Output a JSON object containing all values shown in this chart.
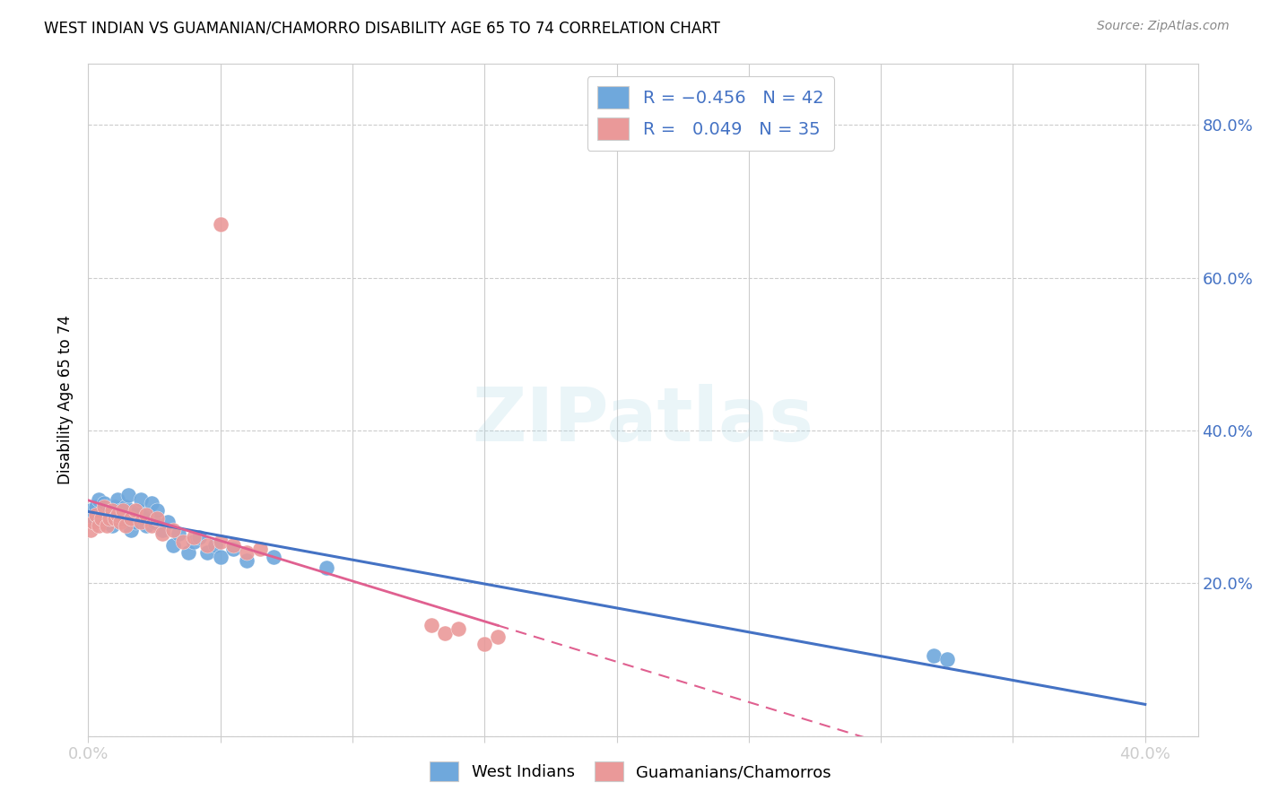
{
  "title": "WEST INDIAN VS GUAMANIAN/CHAMORRO DISABILITY AGE 65 TO 74 CORRELATION CHART",
  "source": "Source: ZipAtlas.com",
  "ylabel": "Disability Age 65 to 74",
  "blue_color": "#6fa8dc",
  "pink_color": "#ea9999",
  "blue_line_color": "#4472c4",
  "pink_line_color": "#e06090",
  "xlim": [
    0.0,
    0.42
  ],
  "ylim": [
    0.0,
    0.88
  ],
  "watermark_text": "ZIPatlas",
  "legend_r1": "R = -0.456",
  "legend_n1": "N = 42",
  "legend_r2": "R =  0.049",
  "legend_n2": "N = 35",
  "west_indians_x": [
    0.001,
    0.002,
    0.003,
    0.004,
    0.005,
    0.006,
    0.007,
    0.008,
    0.009,
    0.01,
    0.011,
    0.012,
    0.013,
    0.014,
    0.015,
    0.016,
    0.017,
    0.018,
    0.019,
    0.02,
    0.021,
    0.022,
    0.023,
    0.024,
    0.025,
    0.026,
    0.028,
    0.03,
    0.032,
    0.034,
    0.038,
    0.04,
    0.042,
    0.045,
    0.048,
    0.05,
    0.055,
    0.06,
    0.07,
    0.09,
    0.32,
    0.325
  ],
  "west_indians_y": [
    0.295,
    0.285,
    0.3,
    0.31,
    0.29,
    0.305,
    0.28,
    0.295,
    0.275,
    0.3,
    0.31,
    0.295,
    0.285,
    0.3,
    0.315,
    0.27,
    0.29,
    0.28,
    0.295,
    0.31,
    0.285,
    0.275,
    0.29,
    0.305,
    0.28,
    0.295,
    0.27,
    0.28,
    0.25,
    0.265,
    0.24,
    0.255,
    0.26,
    0.24,
    0.25,
    0.235,
    0.245,
    0.23,
    0.235,
    0.22,
    0.105,
    0.1
  ],
  "guamanians_x": [
    0.001,
    0.002,
    0.003,
    0.004,
    0.005,
    0.006,
    0.007,
    0.008,
    0.009,
    0.01,
    0.011,
    0.012,
    0.013,
    0.014,
    0.016,
    0.018,
    0.02,
    0.022,
    0.024,
    0.026,
    0.028,
    0.032,
    0.036,
    0.04,
    0.045,
    0.05,
    0.055,
    0.06,
    0.065,
    0.13,
    0.135,
    0.14,
    0.15,
    0.155,
    0.05
  ],
  "guamanians_y": [
    0.27,
    0.28,
    0.29,
    0.275,
    0.285,
    0.3,
    0.275,
    0.285,
    0.295,
    0.285,
    0.29,
    0.28,
    0.295,
    0.275,
    0.285,
    0.295,
    0.28,
    0.29,
    0.275,
    0.285,
    0.265,
    0.27,
    0.255,
    0.26,
    0.25,
    0.255,
    0.25,
    0.24,
    0.245,
    0.145,
    0.135,
    0.14,
    0.12,
    0.13,
    0.67
  ]
}
